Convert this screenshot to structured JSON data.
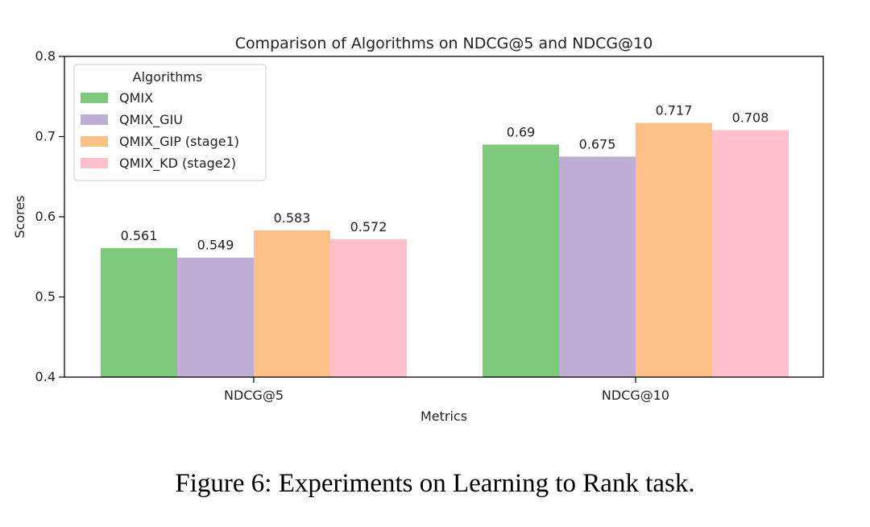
{
  "chart_data": {
    "type": "bar",
    "title": "Comparison of Algorithms on NDCG@5 and NDCG@10",
    "xlabel": "Metrics",
    "ylabel": "Scores",
    "categories": [
      "NDCG@5",
      "NDCG@10"
    ],
    "ylim": [
      0.4,
      0.8
    ],
    "yticks": [
      "0.4",
      "0.5",
      "0.6",
      "0.7",
      "0.8"
    ],
    "grid": false,
    "legend": {
      "title": "Algorithms",
      "placement": "top-left"
    },
    "series": [
      {
        "name": "QMIX",
        "color": "#7fc97f",
        "values": [
          0.561,
          0.69
        ],
        "labels": [
          "0.561",
          "0.69"
        ]
      },
      {
        "name": "QMIX_GIU",
        "color": "#beaed4",
        "values": [
          0.549,
          0.675
        ],
        "labels": [
          "0.549",
          "0.675"
        ]
      },
      {
        "name": "QMIX_GIP (stage1)",
        "color": "#fdc086",
        "values": [
          0.583,
          0.717
        ],
        "labels": [
          "0.583",
          "0.717"
        ]
      },
      {
        "name": "QMIX_KD (stage2)",
        "color": "#ffc0cb",
        "values": [
          0.572,
          0.708
        ],
        "labels": [
          "0.572",
          "0.708"
        ]
      }
    ]
  },
  "caption": "Figure 6: Experiments on Learning to Rank task."
}
